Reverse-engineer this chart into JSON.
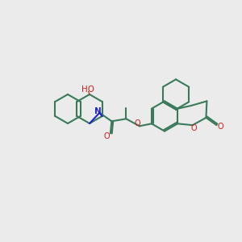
{
  "background_color": "#ebebeb",
  "bond_color": "#3a7a5a",
  "nitrogen_color": "#2020cc",
  "oxygen_color": "#cc2020",
  "ho_label": "HO",
  "n_label": "N",
  "o_label_carbonyl": "O",
  "o_label_ring": "O",
  "o_label_ether": "O",
  "line_width": 1.5,
  "figsize": [
    3.0,
    3.0
  ],
  "dpi": 100
}
